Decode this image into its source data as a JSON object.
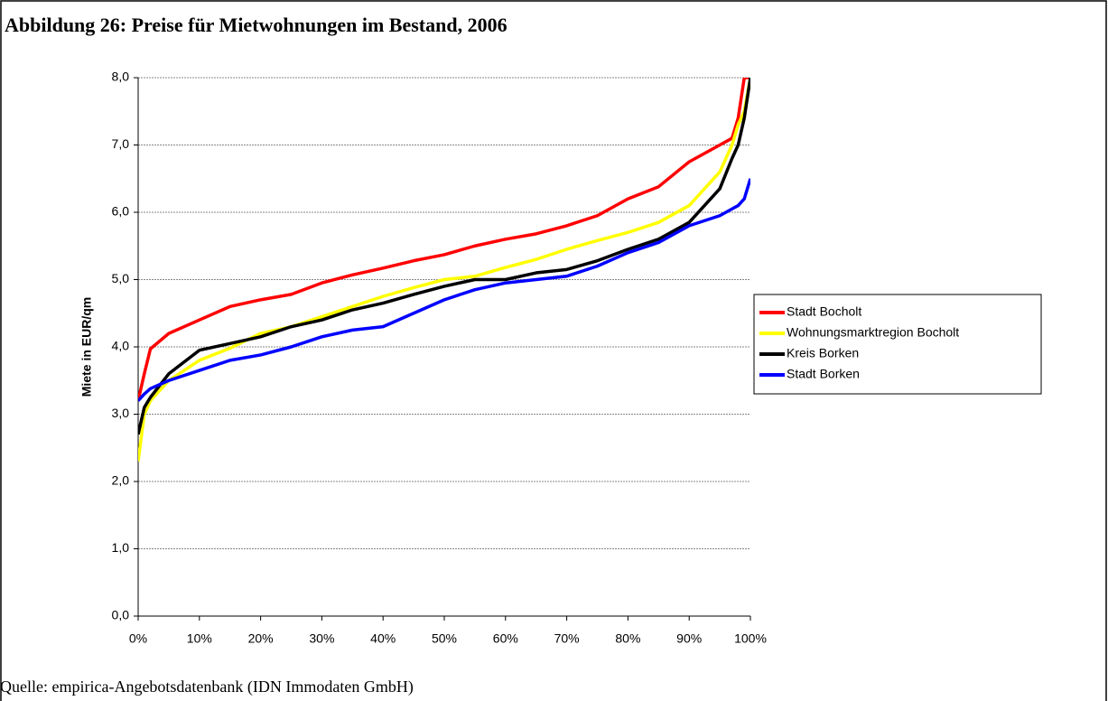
{
  "chart_data": {
    "type": "line",
    "title": "Abbildung 26: Preise für Mietwohnungen im Bestand, 2006",
    "y_label": "Miete in EUR/qm",
    "source": "Quelle: empirica-Angebotsdatenbank (IDN Immodaten GmbH)",
    "x": [
      0,
      1,
      2,
      5,
      10,
      15,
      20,
      25,
      30,
      35,
      40,
      45,
      50,
      55,
      60,
      65,
      70,
      75,
      80,
      85,
      90,
      95,
      97,
      98,
      99,
      100
    ],
    "series": [
      {
        "name": "Stadt Bocholt",
        "color": "#ff0000",
        "values": [
          3.2,
          3.6,
          3.97,
          4.2,
          4.4,
          4.6,
          4.7,
          4.78,
          4.95,
          5.07,
          5.17,
          5.28,
          5.37,
          5.5,
          5.6,
          5.68,
          5.8,
          5.95,
          6.2,
          6.38,
          6.75,
          7.0,
          7.1,
          7.4,
          8.0,
          8.0
        ]
      },
      {
        "name": "Wohnungsmarktregion Bocholt",
        "color": "#ffff00",
        "values": [
          2.3,
          3.0,
          3.2,
          3.5,
          3.8,
          3.98,
          4.2,
          4.3,
          4.45,
          4.6,
          4.75,
          4.88,
          5.0,
          5.05,
          5.18,
          5.3,
          5.45,
          5.58,
          5.7,
          5.85,
          6.1,
          6.6,
          7.0,
          7.3,
          7.5,
          8.0
        ]
      },
      {
        "name": "Kreis Borken",
        "color": "#000000",
        "values": [
          2.7,
          3.1,
          3.25,
          3.6,
          3.95,
          4.05,
          4.15,
          4.3,
          4.4,
          4.55,
          4.65,
          4.78,
          4.9,
          5.0,
          5.0,
          5.1,
          5.15,
          5.28,
          5.45,
          5.6,
          5.85,
          6.35,
          6.8,
          7.0,
          7.4,
          8.0
        ]
      },
      {
        "name": "Stadt Borken",
        "color": "#0000ff",
        "values": [
          3.2,
          3.3,
          3.38,
          3.5,
          3.65,
          3.8,
          3.88,
          4.0,
          4.15,
          4.25,
          4.3,
          4.5,
          4.7,
          4.85,
          4.95,
          5.0,
          5.05,
          5.2,
          5.4,
          5.55,
          5.8,
          5.95,
          6.05,
          6.1,
          6.2,
          6.5
        ]
      }
    ],
    "xlim": [
      0,
      100
    ],
    "xticks": [
      {
        "value": 0,
        "label": "0%"
      },
      {
        "value": 10,
        "label": "10%"
      },
      {
        "value": 20,
        "label": "20%"
      },
      {
        "value": 30,
        "label": "30%"
      },
      {
        "value": 40,
        "label": "40%"
      },
      {
        "value": 50,
        "label": "50%"
      },
      {
        "value": 60,
        "label": "60%"
      },
      {
        "value": 70,
        "label": "70%"
      },
      {
        "value": 80,
        "label": "80%"
      },
      {
        "value": 90,
        "label": "90%"
      },
      {
        "value": 100,
        "label": "100%"
      }
    ],
    "ylim": [
      0,
      8
    ],
    "yticks": [
      {
        "value": 0,
        "label": "0,0"
      },
      {
        "value": 1,
        "label": "1,0"
      },
      {
        "value": 2,
        "label": "2,0"
      },
      {
        "value": 3,
        "label": "3,0"
      },
      {
        "value": 4,
        "label": "4,0"
      },
      {
        "value": 5,
        "label": "5,0"
      },
      {
        "value": 6,
        "label": "6,0"
      },
      {
        "value": 7,
        "label": "7,0"
      },
      {
        "value": 8,
        "label": "8,0"
      }
    ],
    "grid": true,
    "legend": "right"
  }
}
